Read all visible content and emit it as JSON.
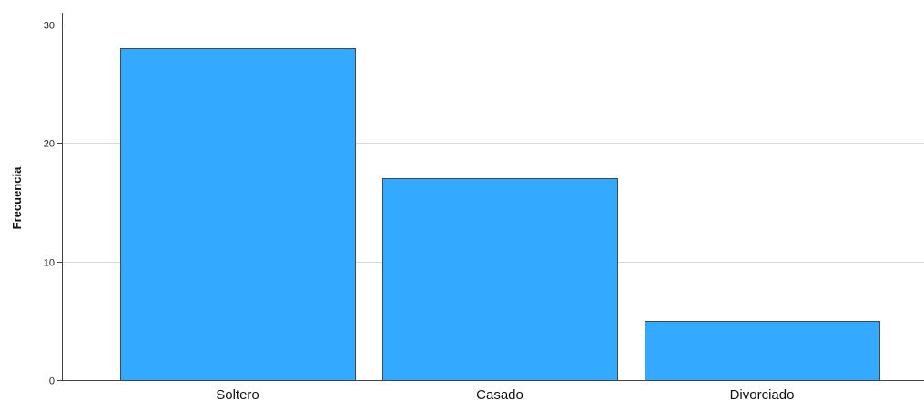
{
  "chart_data": {
    "type": "bar",
    "title": "",
    "xlabel": "",
    "ylabel": "Frecuencia",
    "categories": [
      "Soltero",
      "Casado",
      "Divorciado"
    ],
    "values": [
      28,
      17,
      5
    ],
    "ylim": [
      0,
      31
    ],
    "yticks": [
      0,
      10,
      20,
      30
    ],
    "grid": true,
    "legend": "none",
    "bar_color": "#33aaff",
    "bar_edge_color": "#3f4a5a",
    "grid_color": "#d9d9d9"
  }
}
